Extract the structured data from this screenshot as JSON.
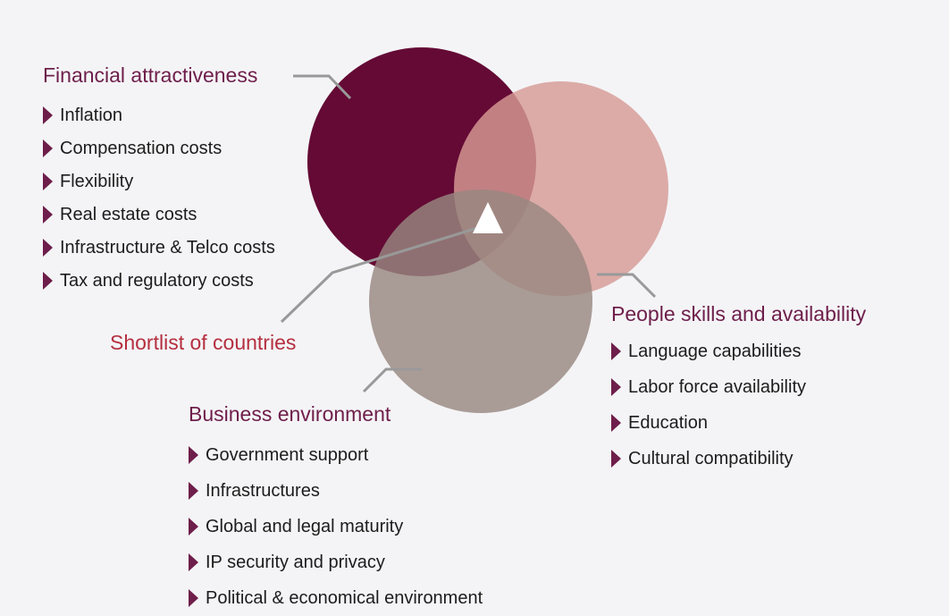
{
  "colors": {
    "background": "#f4f4f6",
    "financial_circle": "#640a35",
    "people_circle": "#d79b95",
    "business_circle": "#998780",
    "title_color": "#6e1e4a",
    "shortlist_color": "#b52f3f",
    "marker_color": "#6e1e4a",
    "callout_line": "#999999"
  },
  "financial": {
    "title": "Financial attractiveness",
    "items": [
      "Inflation",
      "Compensation costs",
      "Flexibility",
      "Real estate costs",
      "Infrastructure & Telco costs",
      "Tax and regulatory costs"
    ]
  },
  "people": {
    "title": "People skills and availability",
    "items": [
      "Language capabilities",
      "Labor force availability",
      "Education",
      "Cultural compatibility"
    ]
  },
  "business": {
    "title": "Business environment",
    "items": [
      "Government support",
      "Infrastructures",
      "Global and legal maturity",
      "IP security and privacy",
      "Political & economical environment"
    ]
  },
  "shortlist": {
    "label": "Shortlist of countries",
    "icon": "triangle-icon"
  }
}
